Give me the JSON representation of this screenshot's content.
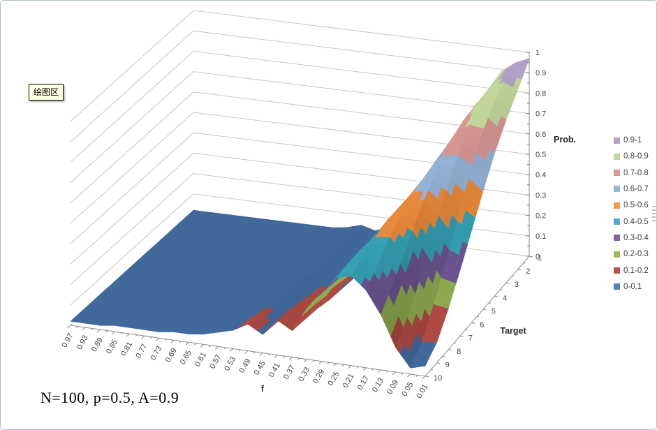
{
  "tooltip": {
    "text": "绘图区"
  },
  "annotation": {
    "text": "N=100, p=0.5, A=0.9"
  },
  "legend": {
    "items": [
      {
        "label": "0.9-1",
        "color": "#B2A2C7"
      },
      {
        "label": "0.8-0.9",
        "color": "#C3D69B"
      },
      {
        "label": "0.7-0.8",
        "color": "#D99694"
      },
      {
        "label": "0.6-0.7",
        "color": "#95B3D7"
      },
      {
        "label": "0.5-0.6",
        "color": "#F79646"
      },
      {
        "label": "0.4-0.5",
        "color": "#4BACC6"
      },
      {
        "label": "0.3-0.4",
        "color": "#8064A2"
      },
      {
        "label": "0.2-0.3",
        "color": "#9BBB59"
      },
      {
        "label": "0.1-0.2",
        "color": "#C0504D"
      },
      {
        "label": "0-0.1",
        "color": "#4F81BD"
      }
    ]
  },
  "chart_data": {
    "type": "surface",
    "title": "",
    "xlabel": "f",
    "series_axis_label": "Target",
    "value_axis_label": "Prob.",
    "zlim": [
      0,
      1
    ],
    "band_size": 0.1,
    "value_ticks": [
      "1",
      "0.9",
      "0.8",
      "0.7",
      "0.6",
      "0.5",
      "0.4",
      "0.3",
      "0.2",
      "0.1",
      "0"
    ],
    "x_categories": [
      "0.97",
      "0.93",
      "0.89",
      "0.85",
      "0.81",
      "0.77",
      "0.73",
      "0.69",
      "0.65",
      "0.61",
      "0.57",
      "0.53",
      "0.49",
      "0.45",
      "0.41",
      "0.37",
      "0.33",
      "0.29",
      "0.25",
      "0.21",
      "0.17",
      "0.13",
      "0.09",
      "0.05",
      "0.01"
    ],
    "band_colors_low_to_high": [
      "#41699B",
      "#AE4A44",
      "#8FAC50",
      "#6E5594",
      "#35A1B5",
      "#E9893B",
      "#94B2D6",
      "#D59693",
      "#C2D59A",
      "#B1A1C6"
    ],
    "gridline_color": "#C6C6C6",
    "axis_color": "#898989",
    "label_color": "#3F3F3F",
    "series": [
      {
        "name": "1",
        "values": [
          0.02,
          0.02,
          0.02,
          0.02,
          0.02,
          0.02,
          0.02,
          0.02,
          0.02,
          0.02,
          0.02,
          0.03,
          0.05,
          0.03,
          0.06,
          0.04,
          0.08,
          0.13,
          0.24,
          0.42,
          0.62,
          0.78,
          0.89,
          0.94,
          0.97
        ]
      },
      {
        "name": "2",
        "values": [
          0.02,
          0.02,
          0.02,
          0.02,
          0.02,
          0.02,
          0.02,
          0.02,
          0.02,
          0.02,
          0.03,
          0.03,
          0.05,
          0.03,
          0.06,
          0.05,
          0.1,
          0.16,
          0.28,
          0.45,
          0.64,
          0.78,
          0.87,
          0.91,
          0.88
        ]
      },
      {
        "name": "3",
        "values": [
          0.02,
          0.02,
          0.02,
          0.02,
          0.02,
          0.02,
          0.02,
          0.02,
          0.02,
          0.03,
          0.03,
          0.04,
          0.06,
          0.04,
          0.07,
          0.05,
          0.12,
          0.19,
          0.32,
          0.48,
          0.65,
          0.77,
          0.84,
          0.85,
          0.8
        ]
      },
      {
        "name": "4",
        "values": [
          0.02,
          0.02,
          0.02,
          0.02,
          0.02,
          0.02,
          0.02,
          0.02,
          0.03,
          0.03,
          0.03,
          0.04,
          0.06,
          0.04,
          0.08,
          0.06,
          0.14,
          0.22,
          0.36,
          0.51,
          0.64,
          0.74,
          0.78,
          0.76,
          0.7
        ]
      },
      {
        "name": "5",
        "values": [
          0.02,
          0.02,
          0.02,
          0.02,
          0.02,
          0.02,
          0.02,
          0.03,
          0.03,
          0.03,
          0.04,
          0.05,
          0.07,
          0.05,
          0.09,
          0.07,
          0.16,
          0.25,
          0.39,
          0.52,
          0.62,
          0.69,
          0.68,
          0.63,
          0.58
        ]
      },
      {
        "name": "6",
        "values": [
          0.02,
          0.02,
          0.02,
          0.02,
          0.02,
          0.02,
          0.03,
          0.03,
          0.03,
          0.03,
          0.04,
          0.05,
          0.08,
          0.05,
          0.1,
          0.08,
          0.18,
          0.28,
          0.41,
          0.52,
          0.6,
          0.62,
          0.57,
          0.49,
          0.45
        ]
      },
      {
        "name": "7",
        "values": [
          0.02,
          0.02,
          0.02,
          0.02,
          0.02,
          0.03,
          0.03,
          0.03,
          0.03,
          0.04,
          0.05,
          0.06,
          0.09,
          0.06,
          0.12,
          0.09,
          0.2,
          0.3,
          0.42,
          0.52,
          0.56,
          0.54,
          0.44,
          0.34,
          0.32
        ]
      },
      {
        "name": "8",
        "values": [
          0.02,
          0.02,
          0.02,
          0.02,
          0.03,
          0.03,
          0.03,
          0.03,
          0.04,
          0.04,
          0.05,
          0.07,
          0.1,
          0.07,
          0.14,
          0.11,
          0.22,
          0.32,
          0.43,
          0.5,
          0.51,
          0.44,
          0.31,
          0.21,
          0.2
        ]
      },
      {
        "name": "9",
        "values": [
          0.02,
          0.02,
          0.02,
          0.03,
          0.03,
          0.03,
          0.03,
          0.04,
          0.04,
          0.05,
          0.06,
          0.08,
          0.12,
          0.08,
          0.16,
          0.12,
          0.24,
          0.33,
          0.43,
          0.47,
          0.44,
          0.35,
          0.2,
          0.09,
          0.1
        ]
      },
      {
        "name": "10",
        "values": [
          0.02,
          0.02,
          0.02,
          0.03,
          0.03,
          0.03,
          0.03,
          0.04,
          0.04,
          0.05,
          0.07,
          0.09,
          0.13,
          0.09,
          0.17,
          0.13,
          0.25,
          0.34,
          0.42,
          0.44,
          0.38,
          0.27,
          0.12,
          0.03,
          0.05
        ]
      }
    ]
  }
}
